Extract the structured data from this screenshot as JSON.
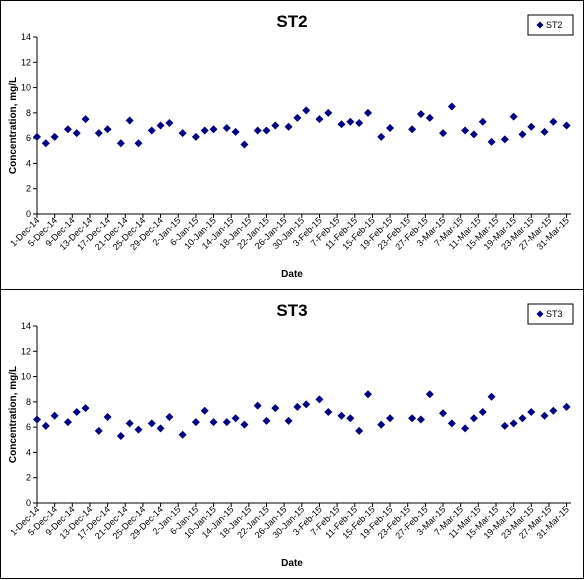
{
  "colors": {
    "marker": "#000080",
    "axis": "#000000",
    "background": "#ffffff"
  },
  "x_tick_labels": [
    "1-Dec-14",
    "5-Dec-14",
    "9-Dec-14",
    "13-Dec-14",
    "17-Dec-14",
    "21-Dec-14",
    "25-Dec-14",
    "29-Dec-14",
    "2-Jan-15",
    "6-Jan-15",
    "10-Jan-15",
    "14-Jan-15",
    "18-Jan-15",
    "22-Jan-15",
    "26-Jan-15",
    "30-Jan-15",
    "3-Feb-15",
    "7-Feb-15",
    "11-Feb-15",
    "15-Feb-15",
    "19-Feb-15",
    "23-Feb-15",
    "27-Feb-15",
    "3-Mar-15",
    "7-Mar-15",
    "11-Mar-15",
    "15-Mar-15",
    "19-Mar-15",
    "23-Mar-15",
    "27-Mar-15",
    "31-Mar-15"
  ],
  "chart_data": [
    {
      "type": "scatter",
      "title": "ST2",
      "xlabel": "Date",
      "ylabel": "Concentration, mg/L",
      "ylim": [
        0,
        14
      ],
      "yticks": [
        0,
        2,
        4,
        6,
        8,
        10,
        12,
        14
      ],
      "xlim": [
        "1-Dec-14",
        "1-Apr-15"
      ],
      "grid": false,
      "legend": "top-right",
      "series": [
        {
          "name": "ST2",
          "x": [
            "1-Dec-14",
            "3-Dec-14",
            "5-Dec-14",
            "8-Dec-14",
            "10-Dec-14",
            "12-Dec-14",
            "15-Dec-14",
            "17-Dec-14",
            "20-Dec-14",
            "22-Dec-14",
            "24-Dec-14",
            "27-Dec-14",
            "29-Dec-14",
            "31-Dec-14",
            "3-Jan-15",
            "6-Jan-15",
            "8-Jan-15",
            "10-Jan-15",
            "13-Jan-15",
            "15-Jan-15",
            "17-Jan-15",
            "20-Jan-15",
            "22-Jan-15",
            "24-Jan-15",
            "27-Jan-15",
            "29-Jan-15",
            "31-Jan-15",
            "3-Feb-15",
            "5-Feb-15",
            "8-Feb-15",
            "10-Feb-15",
            "12-Feb-15",
            "14-Feb-15",
            "17-Feb-15",
            "19-Feb-15",
            "24-Feb-15",
            "26-Feb-15",
            "28-Feb-15",
            "3-Mar-15",
            "5-Mar-15",
            "8-Mar-15",
            "10-Mar-15",
            "12-Mar-15",
            "14-Mar-15",
            "17-Mar-15",
            "19-Mar-15",
            "21-Mar-15",
            "23-Mar-15",
            "26-Mar-15",
            "28-Mar-15",
            "31-Mar-15"
          ],
          "values": [
            6.1,
            5.6,
            6.1,
            6.7,
            6.4,
            7.5,
            6.4,
            6.7,
            5.6,
            7.4,
            5.6,
            6.6,
            7.0,
            7.2,
            6.4,
            6.1,
            6.6,
            6.7,
            6.8,
            6.5,
            5.5,
            6.6,
            6.6,
            7.0,
            6.9,
            7.6,
            8.2,
            7.5,
            8.0,
            7.1,
            7.3,
            7.2,
            8.0,
            6.1,
            6.8,
            6.7,
            7.9,
            7.6,
            6.4,
            8.5,
            6.6,
            6.3,
            7.3,
            5.7,
            5.9,
            7.7,
            6.3,
            6.9,
            6.5,
            7.3,
            7.0
          ]
        }
      ]
    },
    {
      "type": "scatter",
      "title": "ST3",
      "xlabel": "Date",
      "ylabel": "Concentration, mg/L",
      "ylim": [
        0,
        14
      ],
      "yticks": [
        0,
        2,
        4,
        6,
        8,
        10,
        12,
        14
      ],
      "xlim": [
        "1-Dec-14",
        "1-Apr-15"
      ],
      "grid": false,
      "legend": "top-right",
      "series": [
        {
          "name": "ST3",
          "x": [
            "1-Dec-14",
            "3-Dec-14",
            "5-Dec-14",
            "8-Dec-14",
            "10-Dec-14",
            "12-Dec-14",
            "15-Dec-14",
            "17-Dec-14",
            "20-Dec-14",
            "22-Dec-14",
            "24-Dec-14",
            "27-Dec-14",
            "29-Dec-14",
            "31-Dec-14",
            "3-Jan-15",
            "6-Jan-15",
            "8-Jan-15",
            "10-Jan-15",
            "13-Jan-15",
            "15-Jan-15",
            "17-Jan-15",
            "20-Jan-15",
            "22-Jan-15",
            "24-Jan-15",
            "27-Jan-15",
            "29-Jan-15",
            "31-Jan-15",
            "3-Feb-15",
            "5-Feb-15",
            "8-Feb-15",
            "10-Feb-15",
            "12-Feb-15",
            "14-Feb-15",
            "17-Feb-15",
            "19-Feb-15",
            "24-Feb-15",
            "26-Feb-15",
            "28-Feb-15",
            "3-Mar-15",
            "5-Mar-15",
            "8-Mar-15",
            "10-Mar-15",
            "12-Mar-15",
            "14-Mar-15",
            "17-Mar-15",
            "19-Mar-15",
            "21-Mar-15",
            "23-Mar-15",
            "26-Mar-15",
            "28-Mar-15",
            "31-Mar-15"
          ],
          "values": [
            6.6,
            6.1,
            6.9,
            6.4,
            7.2,
            7.5,
            5.7,
            6.8,
            5.3,
            6.3,
            5.8,
            6.3,
            5.9,
            6.8,
            5.4,
            6.4,
            7.3,
            6.4,
            6.4,
            6.7,
            6.2,
            7.7,
            6.5,
            7.5,
            6.5,
            7.6,
            7.8,
            8.2,
            7.2,
            6.9,
            6.7,
            5.7,
            8.6,
            6.2,
            6.7,
            6.7,
            6.6,
            8.6,
            7.1,
            6.3,
            5.9,
            6.7,
            7.2,
            8.4,
            6.1,
            6.3,
            6.7,
            7.2,
            6.9,
            7.3,
            7.6
          ]
        }
      ]
    }
  ]
}
